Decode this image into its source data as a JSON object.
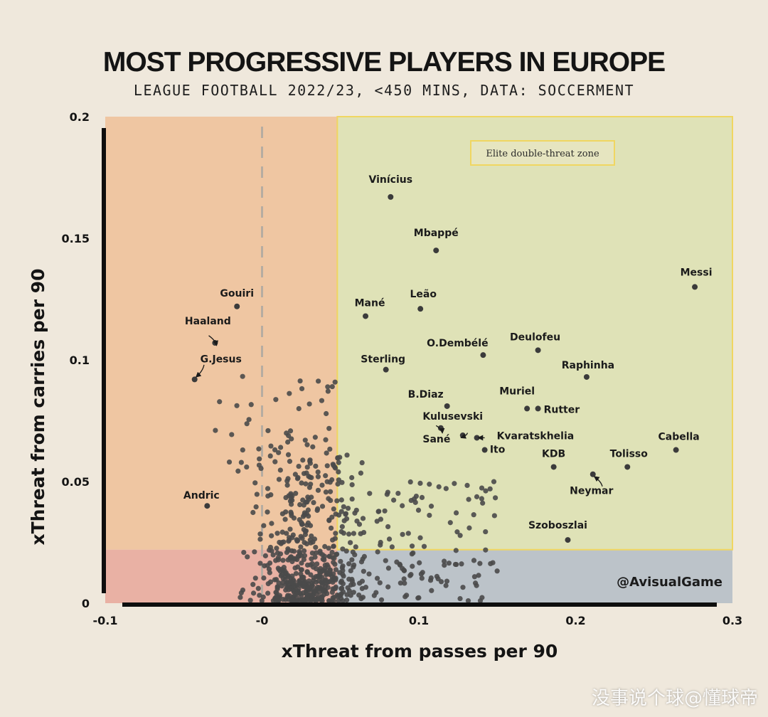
{
  "title": "MOST PROGRESSIVE PLAYERS IN EUROPE",
  "subtitle": "LEAGUE FOOTBALL 2022/23, <450 MINS, DATA: SOCCERMENT",
  "watermark": "没事说个球@懂球帝",
  "chart_data": {
    "type": "scatter",
    "title": "MOST PROGRESSIVE PLAYERS IN EUROPE",
    "subtitle": "LEAGUE FOOTBALL 2022/23, <450 MINS, DATA: SOCCERMENT",
    "xlabel": "xThreat from passes per 90",
    "ylabel": "xThreat from carries per 90",
    "xlim": [
      -0.1,
      0.3
    ],
    "ylim": [
      0,
      0.2
    ],
    "x_ticks": [
      "-0.1",
      "-0",
      "0.1",
      "0.2",
      "0.3"
    ],
    "y_ticks": [
      "0",
      "0.05",
      "0.1",
      "0.15",
      "0.2"
    ],
    "zone_label": "Elite double-threat zone",
    "credit": "@AvisualGame",
    "grid": false,
    "labeled_points": [
      {
        "name": "Vinícius",
        "x": 0.082,
        "y": 0.167
      },
      {
        "name": "Mbappé",
        "x": 0.111,
        "y": 0.145
      },
      {
        "name": "Messi",
        "x": 0.276,
        "y": 0.13
      },
      {
        "name": "Leão",
        "x": 0.101,
        "y": 0.121
      },
      {
        "name": "Mané",
        "x": 0.066,
        "y": 0.118
      },
      {
        "name": "Gouiri",
        "x": -0.016,
        "y": 0.122
      },
      {
        "name": "Haaland",
        "x": -0.03,
        "y": 0.107
      },
      {
        "name": "Deulofeu",
        "x": 0.176,
        "y": 0.104
      },
      {
        "name": "O.Dembélé",
        "x": 0.141,
        "y": 0.102
      },
      {
        "name": "G.Jesus",
        "x": -0.043,
        "y": 0.092
      },
      {
        "name": "Sterling",
        "x": 0.079,
        "y": 0.096
      },
      {
        "name": "Raphinha",
        "x": 0.207,
        "y": 0.093
      },
      {
        "name": "B.Diaz",
        "x": 0.118,
        "y": 0.081
      },
      {
        "name": "Muriel",
        "x": 0.169,
        "y": 0.08
      },
      {
        "name": "Rutter",
        "x": 0.176,
        "y": 0.08
      },
      {
        "name": "Kulusevski",
        "x": 0.128,
        "y": 0.069
      },
      {
        "name": "Kvaratskhelia",
        "x": 0.137,
        "y": 0.068
      },
      {
        "name": "Sané",
        "x": 0.114,
        "y": 0.072
      },
      {
        "name": "Ito",
        "x": 0.142,
        "y": 0.063
      },
      {
        "name": "Cabella",
        "x": 0.264,
        "y": 0.063
      },
      {
        "name": "KDB",
        "x": 0.186,
        "y": 0.056
      },
      {
        "name": "Tolisso",
        "x": 0.233,
        "y": 0.056
      },
      {
        "name": "Neymar",
        "x": 0.211,
        "y": 0.053
      },
      {
        "name": "Andric",
        "x": -0.035,
        "y": 0.04
      },
      {
        "name": "Szoboszlai",
        "x": 0.195,
        "y": 0.026
      }
    ]
  }
}
